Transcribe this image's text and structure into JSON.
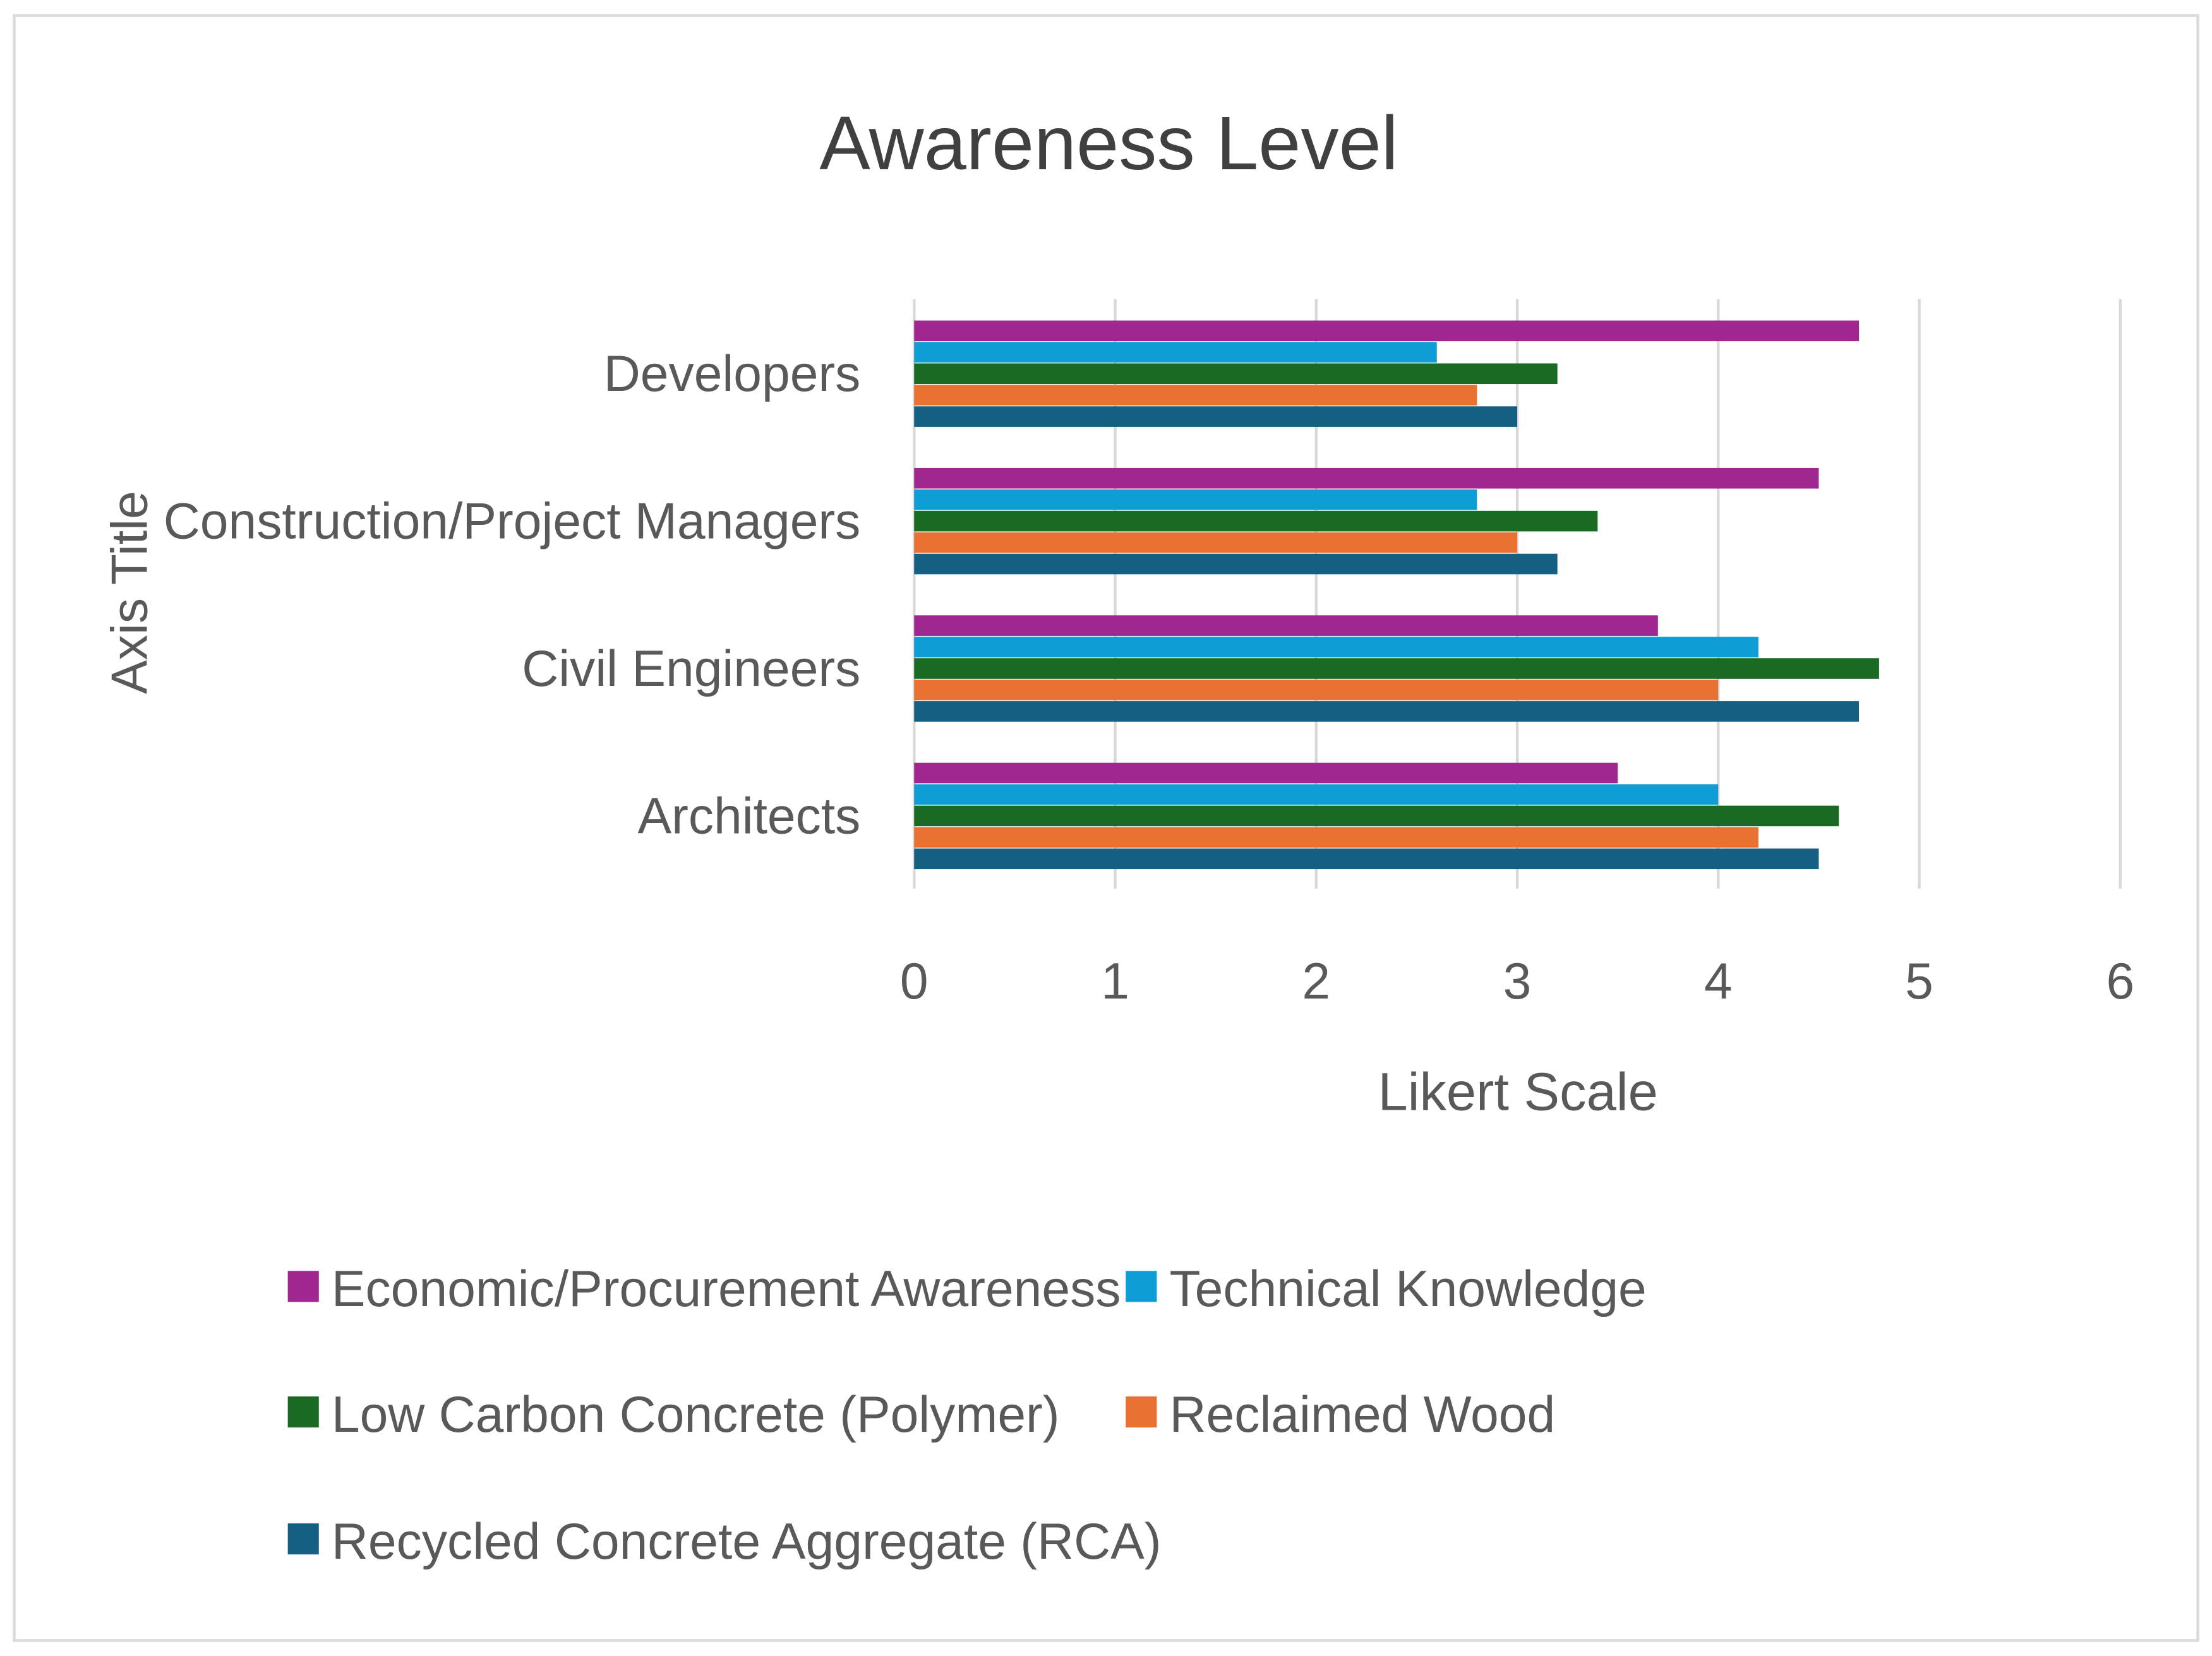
{
  "chart_data": {
    "type": "bar",
    "orientation": "horizontal",
    "title": "Awareness Level",
    "xlabel": "Likert Scale",
    "ylabel": "Axis Title",
    "xlim": [
      0,
      6
    ],
    "xticks": [
      "0",
      "1",
      "2",
      "3",
      "4",
      "5",
      "6"
    ],
    "grid": true,
    "legend_position": "bottom",
    "categories": [
      "Developers",
      "Construction/Project Managers",
      "Civil Engineers",
      "Architects"
    ],
    "series": [
      {
        "name": "Economic/Procurement Awareness",
        "color": "#A0278F",
        "values": [
          4.7,
          4.5,
          3.7,
          3.5
        ]
      },
      {
        "name": "Technical Knowledge",
        "color": "#0E9ED5",
        "values": [
          2.6,
          2.8,
          4.2,
          4.0
        ]
      },
      {
        "name": "Low Carbon Concrete (Polymer)",
        "color": "#196B24",
        "values": [
          3.2,
          3.4,
          4.8,
          4.6
        ]
      },
      {
        "name": "Reclaimed Wood",
        "color": "#E97132",
        "values": [
          2.8,
          3.0,
          4.0,
          4.2
        ]
      },
      {
        "name": "Recycled Concrete Aggregate (RCA)",
        "color": "#156082",
        "values": [
          3.0,
          3.2,
          4.7,
          4.5
        ]
      }
    ]
  }
}
